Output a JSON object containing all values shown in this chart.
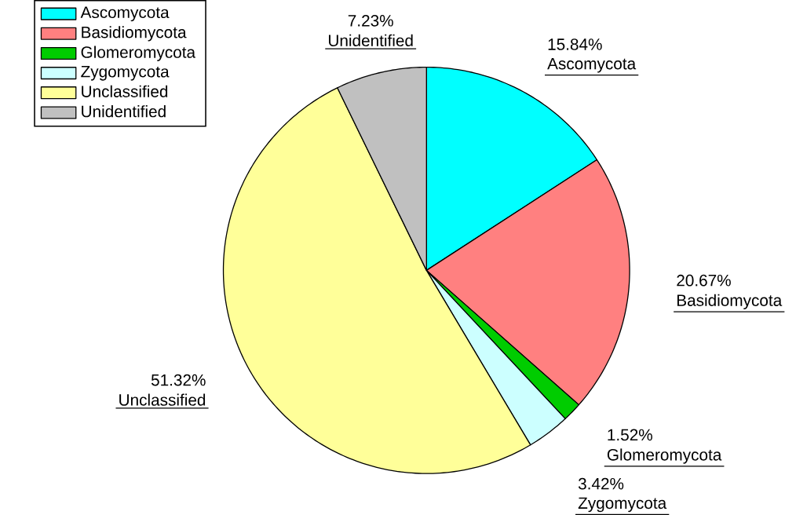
{
  "chart_data": {
    "type": "pie",
    "categories": [
      "Ascomycota",
      "Basidiomycota",
      "Glomeromycota",
      "Zygomycota",
      "Unclassified",
      "Unidentified"
    ],
    "values": [
      15.84,
      20.67,
      1.52,
      3.42,
      51.32,
      7.23
    ],
    "value_labels": [
      "15.84%",
      "20.67%",
      "1.52%",
      "3.42%",
      "51.32%",
      "7.23%"
    ],
    "colors": [
      "#00ffff",
      "#ff8080",
      "#00cc00",
      "#ccffff",
      "#ffff99",
      "#c0c0c0"
    ],
    "legend": "top left"
  }
}
